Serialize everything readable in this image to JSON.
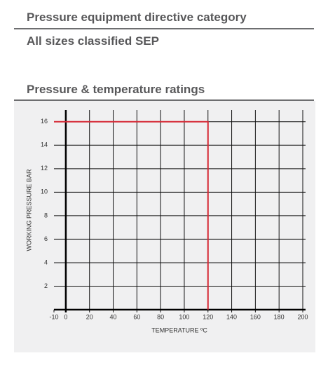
{
  "sections": [
    {
      "title": "Pressure equipment directive category"
    },
    {
      "title": "All sizes classified SEP"
    },
    {
      "title": "Pressure & temperature ratings"
    }
  ],
  "chart_data": {
    "type": "line",
    "x_label": "TEMPERATURE ºC",
    "y_label": "WORKING PRESSURE BAR",
    "series": [
      {
        "color": "#d62a36",
        "x": [
          -10,
          120,
          120
        ],
        "values": [
          16,
          16,
          0
        ]
      }
    ],
    "xlim": [
      -10,
      200
    ],
    "ylim": [
      0,
      17
    ],
    "xticks": [
      -10,
      0,
      20,
      40,
      60,
      80,
      100,
      120,
      140,
      160,
      180,
      200
    ],
    "yticks": [
      2,
      4,
      6,
      8,
      10,
      12,
      14,
      16
    ],
    "grid": true
  }
}
